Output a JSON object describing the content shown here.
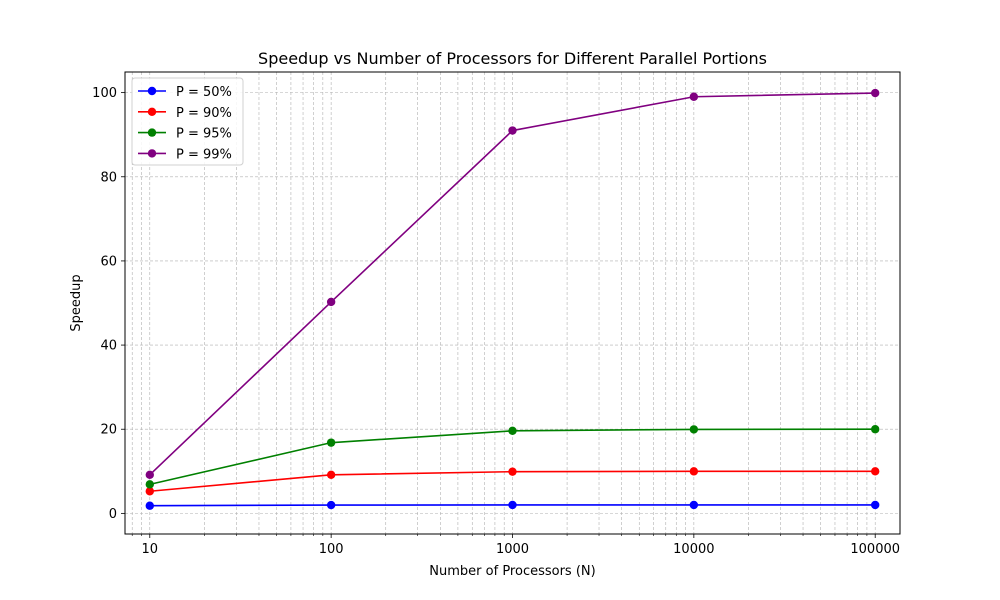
{
  "chart_data": {
    "type": "line",
    "title": "Speedup vs Number of Processors for Different Parallel Portions",
    "xlabel": "Number of Processors (N)",
    "ylabel": "Speedup",
    "x_scale": "log",
    "x": [
      10,
      100,
      1000,
      10000,
      100000
    ],
    "x_tick_labels": [
      "10",
      "100",
      "1000",
      "10000",
      "100000"
    ],
    "y_ticks": [
      0,
      20,
      40,
      60,
      80,
      100
    ],
    "xlim": [
      7.3,
      137000
    ],
    "ylim": [
      -4.9,
      104.9
    ],
    "grid": true,
    "grid_minor": true,
    "legend_position": "top-left",
    "series": [
      {
        "name": "P = 50%",
        "color": "#0000ff",
        "values": [
          1.82,
          1.98,
          2.0,
          2.0,
          2.0
        ]
      },
      {
        "name": "P = 90%",
        "color": "#ff0000",
        "values": [
          5.26,
          9.17,
          9.91,
          9.99,
          10.0
        ]
      },
      {
        "name": "P = 95%",
        "color": "#008000",
        "values": [
          6.9,
          16.81,
          19.63,
          19.96,
          20.0
        ]
      },
      {
        "name": "P = 99%",
        "color": "#800080",
        "values": [
          9.17,
          50.25,
          90.99,
          99.02,
          99.9
        ]
      }
    ]
  }
}
